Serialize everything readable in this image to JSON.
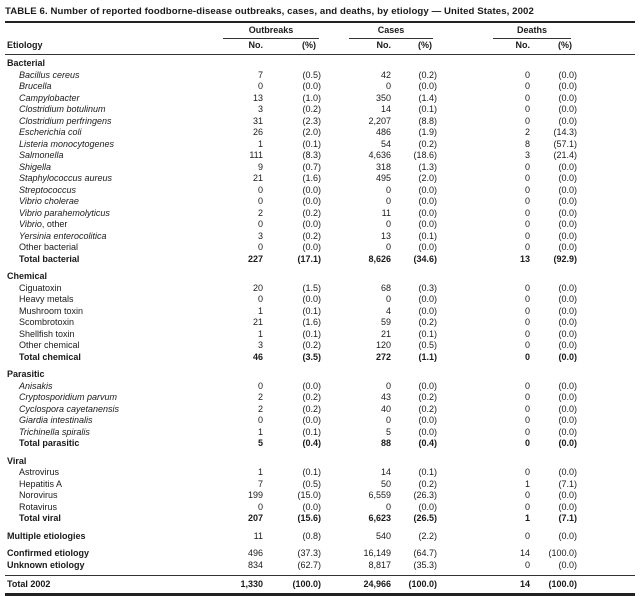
{
  "title": "TABLE 6. Number of reported foodborne-disease outbreaks, cases, and deaths, by etiology — United States, 2002",
  "header": {
    "etiology_label": "Etiology",
    "groups": [
      {
        "label": "Outbreaks"
      },
      {
        "label": "Cases"
      },
      {
        "label": "Deaths"
      }
    ],
    "sub_no": "No.",
    "sub_pct": "(%)"
  },
  "colors": {
    "text": "#1a1a1a",
    "rule_thin": "#333333",
    "rule_heavy": "#222222",
    "background": "#ffffff"
  },
  "rows": [
    {
      "kind": "section",
      "label": "Bacterial"
    },
    {
      "kind": "item",
      "em": "Bacillus cereus",
      "rest": "",
      "v": [
        "7",
        "(0.5)",
        "42",
        "(0.2)",
        "0",
        "(0.0)"
      ]
    },
    {
      "kind": "item",
      "em": "Brucella",
      "rest": "",
      "v": [
        "0",
        "(0.0)",
        "0",
        "(0.0)",
        "0",
        "(0.0)"
      ]
    },
    {
      "kind": "item",
      "em": "Campylobacter",
      "rest": "",
      "v": [
        "13",
        "(1.0)",
        "350",
        "(1.4)",
        "0",
        "(0.0)"
      ]
    },
    {
      "kind": "item",
      "em": "Clostridium botulinum",
      "rest": "",
      "v": [
        "3",
        "(0.2)",
        "14",
        "(0.1)",
        "0",
        "(0.0)"
      ]
    },
    {
      "kind": "item",
      "em": "Clostridium perfringens",
      "rest": "",
      "v": [
        "31",
        "(2.3)",
        "2,207",
        "(8.8)",
        "0",
        "(0.0)"
      ]
    },
    {
      "kind": "item",
      "em": "Escherichia coli",
      "rest": "",
      "v": [
        "26",
        "(2.0)",
        "486",
        "(1.9)",
        "2",
        "(14.3)"
      ]
    },
    {
      "kind": "item",
      "em": "Listeria monocytogenes",
      "rest": "",
      "v": [
        "1",
        "(0.1)",
        "54",
        "(0.2)",
        "8",
        "(57.1)"
      ]
    },
    {
      "kind": "item",
      "em": "Salmonella",
      "rest": "",
      "v": [
        "111",
        "(8.3)",
        "4,636",
        "(18.6)",
        "3",
        "(21.4)"
      ]
    },
    {
      "kind": "item",
      "em": "Shigella",
      "rest": "",
      "v": [
        "9",
        "(0.7)",
        "318",
        "(1.3)",
        "0",
        "(0.0)"
      ]
    },
    {
      "kind": "item",
      "em": "Staphylococcus aureus",
      "rest": "",
      "v": [
        "21",
        "(1.6)",
        "495",
        "(2.0)",
        "0",
        "(0.0)"
      ]
    },
    {
      "kind": "item",
      "em": "Streptococcus",
      "rest": "",
      "v": [
        "0",
        "(0.0)",
        "0",
        "(0.0)",
        "0",
        "(0.0)"
      ]
    },
    {
      "kind": "item",
      "em": "Vibrio cholerae",
      "rest": "",
      "v": [
        "0",
        "(0.0)",
        "0",
        "(0.0)",
        "0",
        "(0.0)"
      ]
    },
    {
      "kind": "item",
      "em": "Vibrio parahemolyticus",
      "rest": "",
      "v": [
        "2",
        "(0.2)",
        "11",
        "(0.0)",
        "0",
        "(0.0)"
      ]
    },
    {
      "kind": "item",
      "em": "Vibrio",
      "rest": ", other",
      "v": [
        "0",
        "(0.0)",
        "0",
        "(0.0)",
        "0",
        "(0.0)"
      ]
    },
    {
      "kind": "item",
      "em": "Yersinia enterocolitica",
      "rest": "",
      "v": [
        "3",
        "(0.2)",
        "13",
        "(0.1)",
        "0",
        "(0.0)"
      ]
    },
    {
      "kind": "item",
      "em": "",
      "rest": "Other bacterial",
      "v": [
        "0",
        "(0.0)",
        "0",
        "(0.0)",
        "0",
        "(0.0)"
      ]
    },
    {
      "kind": "total",
      "label": "Total bacterial",
      "v": [
        "227",
        "(17.1)",
        "8,626",
        "(34.6)",
        "13",
        "(92.9)"
      ]
    },
    {
      "kind": "section",
      "label": "Chemical",
      "gap": true
    },
    {
      "kind": "item",
      "em": "",
      "rest": "Ciguatoxin",
      "v": [
        "20",
        "(1.5)",
        "68",
        "(0.3)",
        "0",
        "(0.0)"
      ]
    },
    {
      "kind": "item",
      "em": "",
      "rest": "Heavy metals",
      "v": [
        "0",
        "(0.0)",
        "0",
        "(0.0)",
        "0",
        "(0.0)"
      ]
    },
    {
      "kind": "item",
      "em": "",
      "rest": "Mushroom toxin",
      "v": [
        "1",
        "(0.1)",
        "4",
        "(0.0)",
        "0",
        "(0.0)"
      ]
    },
    {
      "kind": "item",
      "em": "",
      "rest": "Scombrotoxin",
      "v": [
        "21",
        "(1.6)",
        "59",
        "(0.2)",
        "0",
        "(0.0)"
      ]
    },
    {
      "kind": "item",
      "em": "",
      "rest": "Shellfish toxin",
      "v": [
        "1",
        "(0.1)",
        "21",
        "(0.1)",
        "0",
        "(0.0)"
      ]
    },
    {
      "kind": "item",
      "em": "",
      "rest": "Other chemical",
      "v": [
        "3",
        "(0.2)",
        "120",
        "(0.5)",
        "0",
        "(0.0)"
      ]
    },
    {
      "kind": "total",
      "label": "Total chemical",
      "v": [
        "46",
        "(3.5)",
        "272",
        "(1.1)",
        "0",
        "(0.0)"
      ]
    },
    {
      "kind": "section",
      "label": "Parasitic",
      "gap": true
    },
    {
      "kind": "item",
      "em": "Anisakis",
      "rest": "",
      "v": [
        "0",
        "(0.0)",
        "0",
        "(0.0)",
        "0",
        "(0.0)"
      ]
    },
    {
      "kind": "item",
      "em": "Cryptosporidium parvum",
      "rest": "",
      "v": [
        "2",
        "(0.2)",
        "43",
        "(0.2)",
        "0",
        "(0.0)"
      ]
    },
    {
      "kind": "item",
      "em": "Cyclospora cayetanensis",
      "rest": "",
      "v": [
        "2",
        "(0.2)",
        "40",
        "(0.2)",
        "0",
        "(0.0)"
      ]
    },
    {
      "kind": "item",
      "em": "Giardia intestinalis",
      "rest": "",
      "v": [
        "0",
        "(0.0)",
        "0",
        "(0.0)",
        "0",
        "(0.0)"
      ]
    },
    {
      "kind": "item",
      "em": "Trichinella spiralis",
      "rest": "",
      "v": [
        "1",
        "(0.1)",
        "5",
        "(0.0)",
        "0",
        "(0.0)"
      ]
    },
    {
      "kind": "total",
      "label": "Total parasitic",
      "v": [
        "5",
        "(0.4)",
        "88",
        "(0.4)",
        "0",
        "(0.0)"
      ]
    },
    {
      "kind": "section",
      "label": "Viral",
      "gap": true
    },
    {
      "kind": "item",
      "em": "",
      "rest": "Astrovirus",
      "v": [
        "1",
        "(0.1)",
        "14",
        "(0.1)",
        "0",
        "(0.0)"
      ]
    },
    {
      "kind": "item",
      "em": "",
      "rest": "Hepatitis A",
      "v": [
        "7",
        "(0.5)",
        "50",
        "(0.2)",
        "1",
        "(7.1)"
      ]
    },
    {
      "kind": "item",
      "em": "",
      "rest": "Norovirus",
      "v": [
        "199",
        "(15.0)",
        "6,559",
        "(26.3)",
        "0",
        "(0.0)"
      ]
    },
    {
      "kind": "item",
      "em": "",
      "rest": "Rotavirus",
      "v": [
        "0",
        "(0.0)",
        "0",
        "(0.0)",
        "0",
        "(0.0)"
      ]
    },
    {
      "kind": "total",
      "label": "Total viral",
      "v": [
        "207",
        "(15.6)",
        "6,623",
        "(26.5)",
        "1",
        "(7.1)"
      ]
    },
    {
      "kind": "summary",
      "label": "Multiple etiologies",
      "gap": true,
      "v": [
        "11",
        "(0.8)",
        "540",
        "(2.2)",
        "0",
        "(0.0)"
      ]
    },
    {
      "kind": "summary",
      "label": "Confirmed etiology",
      "gap": true,
      "v": [
        "496",
        "(37.3)",
        "16,149",
        "(64.7)",
        "14",
        "(100.0)"
      ]
    },
    {
      "kind": "summary",
      "label": "Unknown etiology",
      "pregap": true,
      "v": [
        "834",
        "(62.7)",
        "8,817",
        "(35.3)",
        "0",
        "(0.0)"
      ]
    },
    {
      "kind": "grand",
      "label": "Total 2002",
      "v": [
        "1,330",
        "(100.0)",
        "24,966",
        "(100.0)",
        "14",
        "(100.0)"
      ]
    }
  ]
}
